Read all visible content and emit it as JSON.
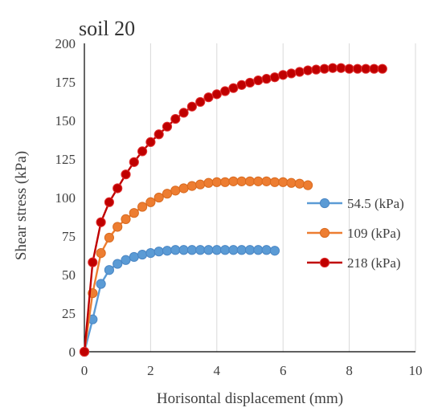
{
  "chart_data": {
    "type": "line",
    "title": "soil 20",
    "xlabel": "Horisontal displacement (mm)",
    "ylabel": "Shear stress (kPa)",
    "xlim": [
      0,
      10
    ],
    "ylim": [
      0,
      200
    ],
    "x_ticks": [
      "0",
      "2",
      "4",
      "6",
      "8",
      "10"
    ],
    "y_ticks": [
      "0",
      "25",
      "50",
      "75",
      "100",
      "125",
      "150",
      "175",
      "200"
    ],
    "grid": "vertical",
    "legend": "right",
    "series": [
      {
        "name": "54.5 (kPa)",
        "color": "#5b9bd5",
        "edge": "#4a86c4",
        "x": [
          0,
          0.25,
          0.5,
          0.75,
          1.0,
          1.25,
          1.5,
          1.75,
          2.0,
          2.25,
          2.5,
          2.75,
          3.0,
          3.25,
          3.5,
          3.75,
          4.0,
          4.25,
          4.5,
          4.75,
          5.0,
          5.25,
          5.5,
          5.75
        ],
        "y": [
          0,
          21,
          44,
          53,
          57,
          59.5,
          61.5,
          63,
          64,
          65,
          65.5,
          66,
          66,
          66,
          66,
          66,
          66,
          66,
          66,
          66,
          66,
          66,
          66,
          65.5
        ]
      },
      {
        "name": "109 (kPa)",
        "color": "#ed7d31",
        "edge": "#d96a1f",
        "x": [
          0,
          0.25,
          0.5,
          0.75,
          1.0,
          1.25,
          1.5,
          1.75,
          2.0,
          2.25,
          2.5,
          2.75,
          3.0,
          3.25,
          3.5,
          3.75,
          4.0,
          4.25,
          4.5,
          4.75,
          5.0,
          5.25,
          5.5,
          5.75,
          6.0,
          6.25,
          6.5,
          6.75
        ],
        "y": [
          0,
          38,
          64,
          74,
          81,
          86,
          90,
          94,
          97,
          100,
          102.5,
          104.5,
          106,
          107.5,
          108.5,
          109.5,
          110,
          110,
          110.5,
          110.5,
          110.5,
          110.5,
          110.5,
          110,
          110,
          109.5,
          109,
          108
        ]
      },
      {
        "name": "218 (kPa)",
        "color": "#c00000",
        "edge": "#e03030",
        "x": [
          0,
          0.25,
          0.5,
          0.75,
          1.0,
          1.25,
          1.5,
          1.75,
          2.0,
          2.25,
          2.5,
          2.75,
          3.0,
          3.25,
          3.5,
          3.75,
          4.0,
          4.25,
          4.5,
          4.75,
          5.0,
          5.25,
          5.5,
          5.75,
          6.0,
          6.25,
          6.5,
          6.75,
          7.0,
          7.25,
          7.5,
          7.75,
          8.0,
          8.25,
          8.5,
          8.75,
          9.0
        ],
        "y": [
          0,
          58,
          84,
          97,
          106,
          115,
          123,
          130,
          136,
          141,
          146,
          151,
          155,
          159,
          162,
          165,
          167,
          169,
          171,
          173,
          174.5,
          176,
          177,
          178,
          179.5,
          180.5,
          181.5,
          182.5,
          183,
          183.5,
          184,
          184,
          183.5,
          183.5,
          183.5,
          183.5,
          183.5
        ]
      }
    ]
  }
}
